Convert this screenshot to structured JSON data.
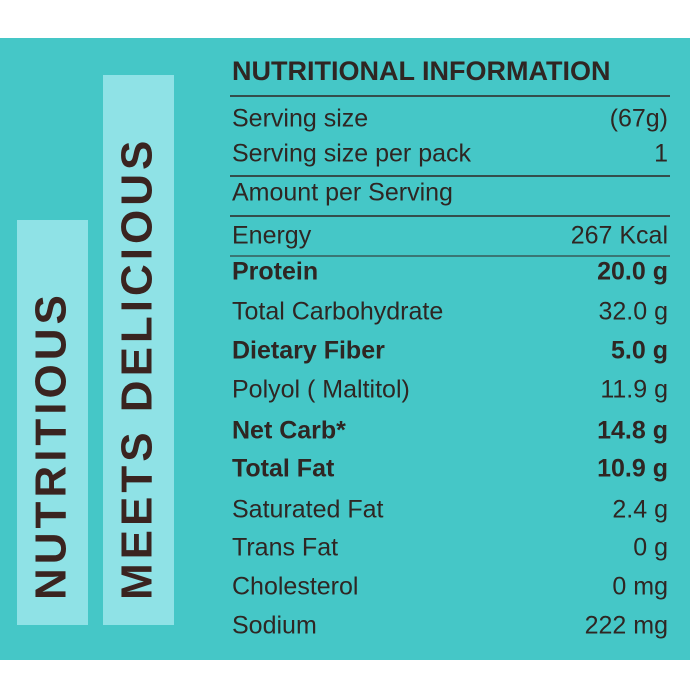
{
  "banners": [
    "NUTRITIOUS",
    "MEETS DELICIOUS"
  ],
  "header": {
    "title": "NUTRITIONAL INFORMATION"
  },
  "serving": [
    [
      "Serving size",
      "(67g)"
    ],
    [
      "Serving size per pack",
      "1"
    ]
  ],
  "amount_heading": "Amount per Serving",
  "table": {
    "rows": [
      [
        "Energy",
        "267 Kcal"
      ],
      [
        "Protein",
        "20.0 g"
      ],
      [
        "Total Carbohydrate",
        "32.0 g"
      ],
      [
        "Dietary Fiber",
        "5.0 g"
      ],
      [
        "Polyol ( Maltitol)",
        "11.9 g"
      ],
      [
        "Net Carb*",
        "14.8 g"
      ],
      [
        "Total Fat",
        "10.9 g"
      ],
      [
        "Saturated Fat",
        "2.4 g"
      ],
      [
        "Trans Fat",
        "0 g"
      ],
      [
        "Cholesterol",
        "0 mg"
      ],
      [
        "Sodium",
        "222 mg"
      ]
    ]
  }
}
